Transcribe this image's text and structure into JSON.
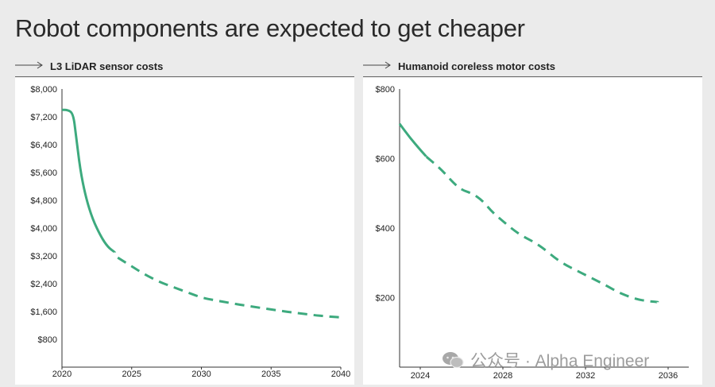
{
  "page": {
    "title": "Robot components are expected to get cheaper",
    "watermark": "公众号 · Alpha Engineer",
    "accent": "#3daa7e"
  },
  "chart_data": [
    {
      "type": "line",
      "title": "L3 LiDAR sensor costs",
      "xlim": [
        2020,
        2040
      ],
      "ylim": [
        0,
        8000
      ],
      "x_ticks": [
        "2020",
        "2025",
        "2030",
        "2035",
        "2040"
      ],
      "x_tick_values": [
        2020,
        2025,
        2030,
        2035,
        2040
      ],
      "y_ticks": [
        "$800",
        "$1,600",
        "$2,400",
        "$3,200",
        "$4,000",
        "$4,800",
        "$5,600",
        "$6,400",
        "$7,200",
        "$8,000"
      ],
      "y_tick_values": [
        800,
        1600,
        2400,
        3200,
        4000,
        4800,
        5600,
        6400,
        7200,
        8000
      ],
      "color": "#3daa7e",
      "series": [
        {
          "style": "solid",
          "x": [
            2020,
            2020.4,
            2020.8,
            2021.0,
            2021.3,
            2021.7,
            2022.2,
            2022.8,
            2023.3,
            2023.8
          ],
          "y": [
            7400,
            7400,
            7300,
            6700,
            5700,
            4900,
            4250,
            3750,
            3450,
            3300
          ]
        },
        {
          "style": "dashed",
          "x": [
            2024,
            2025,
            2026,
            2027,
            2028,
            2029,
            2030,
            2031,
            2032,
            2033,
            2034,
            2035,
            2036,
            2037,
            2038,
            2039,
            2040
          ],
          "y": [
            3150,
            2900,
            2650,
            2450,
            2300,
            2150,
            2000,
            1920,
            1850,
            1780,
            1720,
            1660,
            1600,
            1550,
            1500,
            1460,
            1430
          ]
        }
      ]
    },
    {
      "type": "line",
      "title": "Humanoid coreless motor costs",
      "xlim": [
        2023,
        2037
      ],
      "ylim": [
        0,
        800
      ],
      "x_ticks": [
        "2024",
        "2028",
        "2032",
        "2036"
      ],
      "x_tick_values": [
        2024,
        2028,
        2032,
        2036
      ],
      "y_ticks": [
        "$200",
        "$400",
        "$600",
        "$800"
      ],
      "y_tick_values": [
        200,
        400,
        600,
        800
      ],
      "color": "#3daa7e",
      "series": [
        {
          "style": "solid",
          "x": [
            2023,
            2023.5,
            2024,
            2024.3
          ],
          "y": [
            700,
            660,
            625,
            605
          ]
        },
        {
          "style": "dashed",
          "x": [
            2024.3,
            2025,
            2025.6,
            2026,
            2026.5,
            2027,
            2027.5,
            2028,
            2028.5,
            2029,
            2029.5,
            2030,
            2030.5,
            2031,
            2031.5,
            2032,
            2032.5,
            2033,
            2033.5,
            2034,
            2034.5,
            2035,
            2035.5
          ],
          "y": [
            605,
            570,
            530,
            510,
            500,
            480,
            445,
            420,
            395,
            375,
            360,
            340,
            315,
            295,
            280,
            265,
            250,
            235,
            218,
            205,
            195,
            190,
            187
          ]
        }
      ]
    }
  ]
}
